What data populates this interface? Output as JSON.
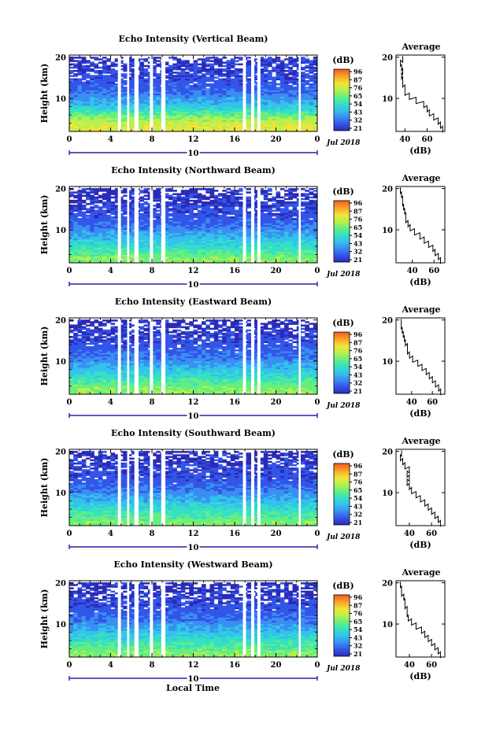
{
  "chart_data": [
    {
      "type": "heatmap",
      "title": "Echo Intensity (Vertical Beam)",
      "ylabel": "Height (km)",
      "x_ticks": [
        "0",
        "4",
        "8",
        "12",
        "16",
        "20",
        "0"
      ],
      "y_ticks": [
        "10",
        "20"
      ],
      "xlim": [
        0,
        24
      ],
      "ylim": [
        2,
        20.5
      ],
      "date_bar_label": "10",
      "date_label": "Jul 2018",
      "colorbar_unit": "(dB)",
      "colorbar_ticks": [
        "96",
        "87",
        "76",
        "65",
        "54",
        "43",
        "32",
        "21"
      ],
      "data_gaps_hours": [
        [
          4.7,
          5.0
        ],
        [
          5.6,
          5.8
        ],
        [
          6.3,
          6.7
        ],
        [
          7.8,
          8.1
        ],
        [
          8.9,
          9.3
        ],
        [
          16.8,
          17.1
        ],
        [
          17.6,
          17.9
        ],
        [
          18.2,
          18.5
        ],
        [
          22.2,
          22.4
        ]
      ],
      "heights_km": [
        3,
        5,
        7,
        9,
        11,
        13,
        15,
        17,
        19
      ],
      "intensity_db": [
        75,
        68,
        55,
        45,
        37,
        33,
        31,
        29,
        27
      ],
      "average": {
        "title": "Average",
        "xlabel": "(dB)",
        "x_ticks": [
          "40",
          "60"
        ],
        "y_ticks": [
          "10",
          "20"
        ],
        "xlim": [
          32,
          76
        ],
        "ylim": [
          2,
          20.5
        ],
        "profile": [
          [
            2.5,
            74
          ],
          [
            3.5,
            72
          ],
          [
            4.5,
            70
          ],
          [
            5.5,
            66
          ],
          [
            6.5,
            62
          ],
          [
            7.5,
            60
          ],
          [
            8.5,
            57
          ],
          [
            9.5,
            50
          ],
          [
            10.5,
            44
          ],
          [
            11.5,
            40
          ],
          [
            12.5,
            40
          ],
          [
            13.5,
            38
          ],
          [
            14.5,
            38
          ],
          [
            15.5,
            37
          ],
          [
            16.5,
            38
          ],
          [
            17.5,
            37
          ],
          [
            18.5,
            36
          ],
          [
            19.5,
            38
          ]
        ]
      }
    },
    {
      "type": "heatmap",
      "title": "Echo Intensity (Northward Beam)",
      "ylabel": "Height (km)",
      "x_ticks": [
        "0",
        "4",
        "8",
        "12",
        "16",
        "20",
        "0"
      ],
      "y_ticks": [
        "10",
        "20"
      ],
      "xlim": [
        0,
        24
      ],
      "ylim": [
        2,
        20.5
      ],
      "date_bar_label": "10",
      "date_label": "Jul 2018",
      "colorbar_unit": "(dB)",
      "colorbar_ticks": [
        "96",
        "87",
        "76",
        "65",
        "54",
        "43",
        "32",
        "21"
      ],
      "data_gaps_hours": [
        [
          4.7,
          5.0
        ],
        [
          5.6,
          5.8
        ],
        [
          6.3,
          6.7
        ],
        [
          7.8,
          8.1
        ],
        [
          8.9,
          9.3
        ],
        [
          16.8,
          17.1
        ],
        [
          17.6,
          17.9
        ],
        [
          18.2,
          18.5
        ],
        [
          22.2,
          22.4
        ]
      ],
      "heights_km": [
        3,
        5,
        7,
        9,
        11,
        13,
        15,
        17,
        19
      ],
      "intensity_db": [
        65,
        58,
        50,
        43,
        36,
        32,
        30,
        28,
        26
      ],
      "average": {
        "title": "Average",
        "xlabel": "(dB)",
        "x_ticks": [
          "40",
          "60"
        ],
        "y_ticks": [
          "10",
          "20"
        ],
        "xlim": [
          25,
          70
        ],
        "ylim": [
          2,
          20.5
        ],
        "profile": [
          [
            2.5,
            66
          ],
          [
            3.5,
            64
          ],
          [
            4.5,
            61
          ],
          [
            5.5,
            59
          ],
          [
            6.5,
            55
          ],
          [
            7.5,
            51
          ],
          [
            8.5,
            47
          ],
          [
            9.5,
            42
          ],
          [
            10.5,
            38
          ],
          [
            11.5,
            36
          ],
          [
            12.5,
            34
          ],
          [
            13.5,
            34
          ],
          [
            14.5,
            33
          ],
          [
            15.5,
            32
          ],
          [
            16.5,
            31
          ],
          [
            17.5,
            31
          ],
          [
            18.5,
            30
          ],
          [
            19.5,
            29
          ]
        ]
      }
    },
    {
      "type": "heatmap",
      "title": "Echo Intensity (Eastward Beam)",
      "ylabel": "Height (km)",
      "x_ticks": [
        "0",
        "4",
        "8",
        "12",
        "16",
        "20",
        "0"
      ],
      "y_ticks": [
        "10",
        "20"
      ],
      "xlim": [
        0,
        24
      ],
      "ylim": [
        2,
        20.5
      ],
      "date_bar_label": "10",
      "date_label": "Jul 2018",
      "colorbar_unit": "(dB)",
      "colorbar_ticks": [
        "96",
        "87",
        "76",
        "65",
        "54",
        "43",
        "32",
        "21"
      ],
      "data_gaps_hours": [
        [
          4.7,
          5.0
        ],
        [
          5.6,
          5.8
        ],
        [
          6.3,
          6.7
        ],
        [
          7.8,
          8.1
        ],
        [
          8.9,
          9.3
        ],
        [
          16.8,
          17.1
        ],
        [
          17.6,
          17.9
        ],
        [
          18.2,
          18.5
        ],
        [
          22.2,
          22.4
        ]
      ],
      "heights_km": [
        3,
        5,
        7,
        9,
        11,
        13,
        15,
        17,
        19
      ],
      "intensity_db": [
        66,
        59,
        51,
        44,
        37,
        33,
        30,
        28,
        26
      ],
      "average": {
        "title": "Average",
        "xlabel": "(dB)",
        "x_ticks": [
          "40",
          "60"
        ],
        "y_ticks": [
          "10",
          "20"
        ],
        "xlim": [
          25,
          72
        ],
        "ylim": [
          2,
          20.5
        ],
        "profile": [
          [
            2.5,
            68
          ],
          [
            3.5,
            66
          ],
          [
            4.5,
            63
          ],
          [
            5.5,
            60
          ],
          [
            6.5,
            57
          ],
          [
            7.5,
            54
          ],
          [
            8.5,
            50
          ],
          [
            9.5,
            46
          ],
          [
            10.5,
            41
          ],
          [
            11.5,
            38
          ],
          [
            12.5,
            36
          ],
          [
            13.5,
            36
          ],
          [
            14.5,
            34
          ],
          [
            15.5,
            33
          ],
          [
            16.5,
            32
          ],
          [
            17.5,
            31
          ],
          [
            18.5,
            30
          ],
          [
            19.5,
            30
          ]
        ]
      }
    },
    {
      "type": "heatmap",
      "title": "Echo Intensity (Southward Beam)",
      "ylabel": "Height (km)",
      "x_ticks": [
        "0",
        "4",
        "8",
        "12",
        "16",
        "20",
        "0"
      ],
      "y_ticks": [
        "10",
        "20"
      ],
      "xlim": [
        0,
        24
      ],
      "ylim": [
        2,
        20.5
      ],
      "date_bar_label": "10",
      "date_label": "Jul 2018",
      "colorbar_unit": "(dB)",
      "colorbar_ticks": [
        "96",
        "87",
        "76",
        "65",
        "54",
        "43",
        "32",
        "21"
      ],
      "data_gaps_hours": [
        [
          4.7,
          5.0
        ],
        [
          5.6,
          5.8
        ],
        [
          6.3,
          6.7
        ],
        [
          7.8,
          8.1
        ],
        [
          8.9,
          9.3
        ],
        [
          16.8,
          17.1
        ],
        [
          17.6,
          17.9
        ],
        [
          18.2,
          18.5
        ],
        [
          22.2,
          22.4
        ]
      ],
      "heights_km": [
        3,
        5,
        7,
        9,
        11,
        13,
        15,
        17,
        19
      ],
      "intensity_db": [
        64,
        57,
        50,
        43,
        36,
        32,
        30,
        28,
        26
      ],
      "average": {
        "title": "Average",
        "xlabel": "(dB)",
        "x_ticks": [
          "40",
          "60"
        ],
        "y_ticks": [
          "10",
          "20"
        ],
        "xlim": [
          28,
          72
        ],
        "ylim": [
          2,
          20.5
        ],
        "profile": [
          [
            2.5,
            68
          ],
          [
            3.5,
            66
          ],
          [
            4.5,
            63
          ],
          [
            5.5,
            60
          ],
          [
            6.5,
            57
          ],
          [
            7.5,
            54
          ],
          [
            8.5,
            50
          ],
          [
            9.5,
            46
          ],
          [
            10.5,
            42
          ],
          [
            11.5,
            40
          ],
          [
            12.5,
            38
          ],
          [
            13.5,
            40
          ],
          [
            14.5,
            38
          ],
          [
            15.5,
            40
          ],
          [
            16.5,
            36
          ],
          [
            17.5,
            34
          ],
          [
            18.5,
            32
          ],
          [
            19.5,
            33
          ]
        ]
      }
    },
    {
      "type": "heatmap",
      "title": "Echo Intensity (Westward Beam)",
      "ylabel": "Height (km)",
      "x_ticks": [
        "0",
        "4",
        "8",
        "12",
        "16",
        "20",
        "0"
      ],
      "y_ticks": [
        "10",
        "20"
      ],
      "xlim": [
        0,
        24
      ],
      "ylim": [
        2,
        20.5
      ],
      "date_bar_label": "10",
      "date_label": "Jul 2018",
      "colorbar_unit": "(dB)",
      "colorbar_ticks": [
        "96",
        "87",
        "76",
        "65",
        "54",
        "43",
        "32",
        "21"
      ],
      "data_gaps_hours": [
        [
          4.7,
          5.0
        ],
        [
          5.6,
          5.8
        ],
        [
          6.3,
          6.7
        ],
        [
          7.8,
          8.1
        ],
        [
          8.9,
          9.3
        ],
        [
          16.8,
          17.1
        ],
        [
          17.6,
          17.9
        ],
        [
          18.2,
          18.5
        ],
        [
          22.2,
          22.4
        ]
      ],
      "heights_km": [
        3,
        5,
        7,
        9,
        11,
        13,
        15,
        17,
        19
      ],
      "intensity_db": [
        65,
        58,
        51,
        44,
        37,
        33,
        30,
        28,
        26
      ],
      "average": {
        "title": "Average",
        "xlabel": "(dB)",
        "x_ticks": [
          "40",
          "60"
        ],
        "y_ticks": [
          "10",
          "20"
        ],
        "xlim": [
          28,
          72
        ],
        "ylim": [
          2,
          20.5
        ],
        "profile": [
          [
            2.5,
            68
          ],
          [
            3.5,
            66
          ],
          [
            4.5,
            63
          ],
          [
            5.5,
            60
          ],
          [
            6.5,
            57
          ],
          [
            7.5,
            54
          ],
          [
            8.5,
            51
          ],
          [
            9.5,
            46
          ],
          [
            10.5,
            42
          ],
          [
            11.5,
            39
          ],
          [
            12.5,
            38
          ],
          [
            13.5,
            38
          ],
          [
            14.5,
            36
          ],
          [
            15.5,
            36
          ],
          [
            16.5,
            35
          ],
          [
            17.5,
            33
          ],
          [
            18.5,
            33
          ],
          [
            19.5,
            32
          ]
        ]
      }
    }
  ],
  "bottom_xlabel": "Local Time",
  "colormap": [
    "#2b2bb8",
    "#3355e8",
    "#3a8ef2",
    "#33c2ec",
    "#35e0c5",
    "#66ef7f",
    "#b8f04d",
    "#f2e438",
    "#f9a52a",
    "#f25a22"
  ]
}
